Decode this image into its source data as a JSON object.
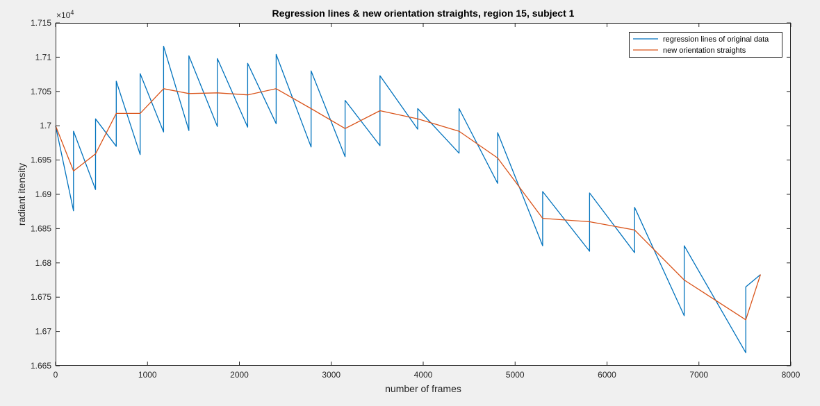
{
  "chart_data": {
    "type": "line",
    "title": "Regression lines & new orientation straights, region 15, subject 1",
    "xlabel": "number of frames",
    "ylabel": "radiant itensity",
    "xlim": [
      0,
      8000
    ],
    "ylim": [
      16650,
      17150
    ],
    "exponent_label": "×10",
    "exponent_power": "4",
    "xticks": [
      0,
      1000,
      2000,
      3000,
      4000,
      5000,
      6000,
      7000,
      8000
    ],
    "xtick_labels": [
      "0",
      "1000",
      "2000",
      "3000",
      "4000",
      "5000",
      "6000",
      "7000",
      "8000"
    ],
    "yticks": [
      16650,
      16700,
      16750,
      16800,
      16850,
      16900,
      16950,
      17000,
      17050,
      17100,
      17150
    ],
    "ytick_labels": [
      "1.665",
      "1.67",
      "1.675",
      "1.68",
      "1.685",
      "1.69",
      "1.695",
      "1.7",
      "1.705",
      "1.71",
      "1.715"
    ],
    "grid": false,
    "legend": "top-right",
    "series": [
      {
        "name": "regression lines of original data",
        "color": "#0072bd",
        "x": [
          0,
          195,
          195,
          435,
          435,
          660,
          660,
          920,
          920,
          1175,
          1175,
          1450,
          1450,
          1760,
          1760,
          2090,
          2090,
          2400,
          2400,
          2780,
          2780,
          3150,
          3150,
          3530,
          3530,
          3940,
          3940,
          4390,
          4390,
          4810,
          4810,
          5300,
          5300,
          5810,
          5810,
          6300,
          6300,
          6840,
          6840,
          7510,
          7510,
          7670
        ],
        "y": [
          17000,
          16876,
          16992,
          16907,
          17010,
          16970,
          17065,
          16958,
          17076,
          16991,
          17116,
          16993,
          17102,
          16999,
          17098,
          16998,
          17091,
          17003,
          17104,
          16969,
          17080,
          16955,
          17037,
          16971,
          17073,
          16995,
          17025,
          16960,
          17025,
          16916,
          16990,
          16825,
          16904,
          16817,
          16902,
          16815,
          16881,
          16723,
          16825,
          16669,
          16765,
          16783
        ]
      },
      {
        "name": "new orientation straights",
        "color": "#d95319",
        "x": [
          0,
          195,
          435,
          660,
          920,
          1175,
          1450,
          1760,
          2090,
          2400,
          2780,
          3150,
          3530,
          3940,
          4390,
          4810,
          5300,
          5810,
          6300,
          6840,
          7510,
          7670
        ],
        "y": [
          17000,
          16934,
          16959,
          17018,
          17018,
          17054,
          17047,
          17048,
          17045,
          17054,
          17025,
          16996,
          17022,
          17010,
          16992,
          16953,
          16865,
          16860,
          16848,
          16775,
          16717,
          16783
        ]
      }
    ]
  }
}
